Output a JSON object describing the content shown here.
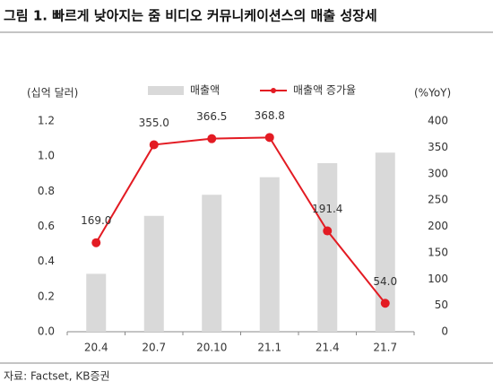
{
  "chart_data": {
    "type": "bar-line",
    "title": "그림 1. 빠르게 낮아지는 줌 비디오 커뮤니케이션스의 매출 성장세",
    "y_label": "(십억 달러)",
    "y2_label": "(%YoY)",
    "source": "자료: Factset, KB증권",
    "categories": [
      "20.4",
      "20.7",
      "20.10",
      "21.1",
      "21.4",
      "21.7"
    ],
    "series": [
      {
        "name": "매출액",
        "type": "bar",
        "color": "#d9d9d9",
        "values": [
          0.33,
          0.66,
          0.78,
          0.88,
          0.96,
          1.02
        ]
      },
      {
        "name": "매출액 증가율",
        "type": "line",
        "axis": "y2",
        "color": "#e31b23",
        "values": [
          169,
          355,
          366.5,
          368.8,
          191.4,
          54
        ],
        "value_labels": [
          "169.0",
          "355.0",
          "366.5",
          "368.8",
          "191.4",
          "54.0"
        ]
      }
    ],
    "ylim": [
      0,
      1.2
    ],
    "yticks": [
      {
        "value": 0,
        "label": "0.0"
      },
      0.2,
      0.4,
      0.6,
      0.8,
      {
        "value": 1,
        "label": "1.0"
      },
      1.2
    ],
    "y2lim": [
      0,
      400
    ],
    "y2ticks": [
      0,
      50,
      100,
      150,
      200,
      250,
      300,
      350,
      400
    ],
    "grid": false
  }
}
